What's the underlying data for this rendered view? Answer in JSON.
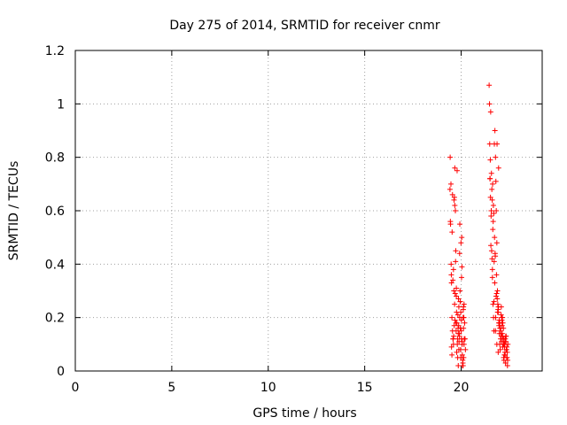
{
  "chart_data": {
    "type": "scatter",
    "title": "Day 275 of 2014, SRMTID for receiver cnmr",
    "xlabel": "GPS time / hours",
    "ylabel": "SRMTID / TECUs",
    "xlim": [
      0,
      24.2
    ],
    "ylim": [
      0,
      1.2
    ],
    "xticks": [
      0,
      5,
      10,
      15,
      20
    ],
    "yticks": [
      0,
      0.2,
      0.4,
      0.6,
      0.8,
      1,
      1.2
    ],
    "xtick_labels": [
      "0",
      "5",
      "10",
      "15",
      "20"
    ],
    "ytick_labels": [
      "0",
      "0.2",
      "0.4",
      "0.6",
      "0.8",
      "1",
      "1.2"
    ],
    "grid": true,
    "legend": "none",
    "marker": "plus",
    "color": "#ff0000",
    "series": [
      {
        "x": [
          19.43,
          19.42,
          19.45,
          19.48,
          19.5,
          19.52,
          19.55,
          19.58,
          19.6,
          19.62,
          19.65,
          19.67,
          19.7,
          19.72,
          19.75,
          19.78,
          19.8,
          19.82,
          19.85,
          19.88,
          19.9,
          19.92,
          19.95,
          19.98,
          20.0,
          20.02,
          20.05,
          20.08,
          20.1,
          20.12,
          20.15,
          20.18,
          20.2,
          20.22,
          19.47,
          19.53,
          19.6,
          19.68,
          19.74,
          19.81,
          19.87,
          19.93,
          19.99,
          20.04,
          20.1,
          20.15,
          19.44,
          19.57,
          19.66,
          19.76,
          19.84,
          19.91,
          19.97,
          20.06,
          20.13,
          19.63,
          19.79,
          19.94,
          20.03,
          20.16,
          19.49,
          19.71,
          19.86,
          20.01,
          20.09,
          19.55,
          19.73,
          19.89,
          20.07,
          19.61,
          19.83,
          19.96,
          20.11,
          19.5,
          19.69,
          19.92,
          20.02,
          19.58,
          19.77,
          19.98,
          20.14,
          19.64,
          19.85,
          20.05,
          19.52,
          19.75,
          19.95,
          20.12,
          19.67,
          19.88
        ],
        "y": [
          0.8,
          0.68,
          0.55,
          0.4,
          0.33,
          0.2,
          0.15,
          0.12,
          0.1,
          0.3,
          0.65,
          0.76,
          0.6,
          0.45,
          0.28,
          0.18,
          0.1,
          0.05,
          0.02,
          0.08,
          0.14,
          0.2,
          0.26,
          0.22,
          0.15,
          0.12,
          0.1,
          0.04,
          0.02,
          0.24,
          0.25,
          0.18,
          0.12,
          0.08,
          0.7,
          0.52,
          0.38,
          0.19,
          0.15,
          0.12,
          0.17,
          0.55,
          0.48,
          0.39,
          0.2,
          0.1,
          0.56,
          0.34,
          0.25,
          0.22,
          0.16,
          0.13,
          0.08,
          0.06,
          0.05,
          0.64,
          0.75,
          0.3,
          0.5,
          0.12,
          0.36,
          0.41,
          0.27,
          0.19,
          0.03,
          0.66,
          0.18,
          0.11,
          0.02,
          0.13,
          0.21,
          0.16,
          0.23,
          0.09,
          0.29,
          0.44,
          0.35,
          0.12,
          0.07,
          0.05,
          0.2,
          0.17,
          0.14,
          0.11,
          0.06,
          0.31,
          0.26,
          0.16,
          0.62,
          0.24
        ]
      },
      {
        "x": [
          21.45,
          21.48,
          21.5,
          21.52,
          21.55,
          21.58,
          21.6,
          21.62,
          21.65,
          21.68,
          21.7,
          21.72,
          21.75,
          21.78,
          21.8,
          21.82,
          21.85,
          21.88,
          21.9,
          21.92,
          21.95,
          21.98,
          22.0,
          22.02,
          22.05,
          22.08,
          22.1,
          22.12,
          22.15,
          22.18,
          22.2,
          22.22,
          22.25,
          22.28,
          22.3,
          22.32,
          22.35,
          22.38,
          22.4,
          22.42,
          21.47,
          21.53,
          21.57,
          21.63,
          21.67,
          21.73,
          21.77,
          21.83,
          21.87,
          21.93,
          21.97,
          22.03,
          22.07,
          22.13,
          22.17,
          22.23,
          22.27,
          22.33,
          22.37,
          22.41,
          21.51,
          21.59,
          21.66,
          21.74,
          21.81,
          21.89,
          21.96,
          22.04,
          22.11,
          22.19,
          22.26,
          22.34,
          21.56,
          21.64,
          21.71,
          21.79,
          21.86,
          21.94,
          22.01,
          22.09,
          22.16,
          22.24,
          22.31,
          22.39,
          21.61,
          21.69,
          21.76,
          21.84,
          21.91,
          21.99,
          22.06,
          22.14,
          22.21,
          22.29,
          22.36,
          21.49,
          21.54,
          21.62,
          21.7,
          21.78,
          21.85,
          21.92,
          22.0,
          22.08,
          22.15,
          22.22,
          22.3
        ],
        "y": [
          1.07,
          0.85,
          0.72,
          0.65,
          0.58,
          0.45,
          0.42,
          0.38,
          0.25,
          0.2,
          0.15,
          0.85,
          0.9,
          0.8,
          0.71,
          0.6,
          0.48,
          0.3,
          0.25,
          0.22,
          0.18,
          0.14,
          0.1,
          0.08,
          0.15,
          0.24,
          0.2,
          0.17,
          0.13,
          0.1,
          0.05,
          0.12,
          0.09,
          0.06,
          0.03,
          0.11,
          0.08,
          0.05,
          0.02,
          0.1,
          1.0,
          0.97,
          0.74,
          0.7,
          0.62,
          0.5,
          0.43,
          0.36,
          0.27,
          0.24,
          0.19,
          0.16,
          0.21,
          0.14,
          0.12,
          0.11,
          0.07,
          0.13,
          0.09,
          0.04,
          0.79,
          0.68,
          0.56,
          0.33,
          0.28,
          0.22,
          0.17,
          0.12,
          0.19,
          0.16,
          0.1,
          0.08,
          0.6,
          0.53,
          0.41,
          0.2,
          0.85,
          0.76,
          0.16,
          0.11,
          0.18,
          0.06,
          0.13,
          0.07,
          0.64,
          0.59,
          0.44,
          0.29,
          0.23,
          0.18,
          0.14,
          0.2,
          0.1,
          0.12,
          0.05,
          0.72,
          0.47,
          0.35,
          0.26,
          0.15,
          0.1,
          0.07,
          0.18,
          0.13,
          0.09,
          0.04,
          0.11
        ]
      }
    ]
  }
}
